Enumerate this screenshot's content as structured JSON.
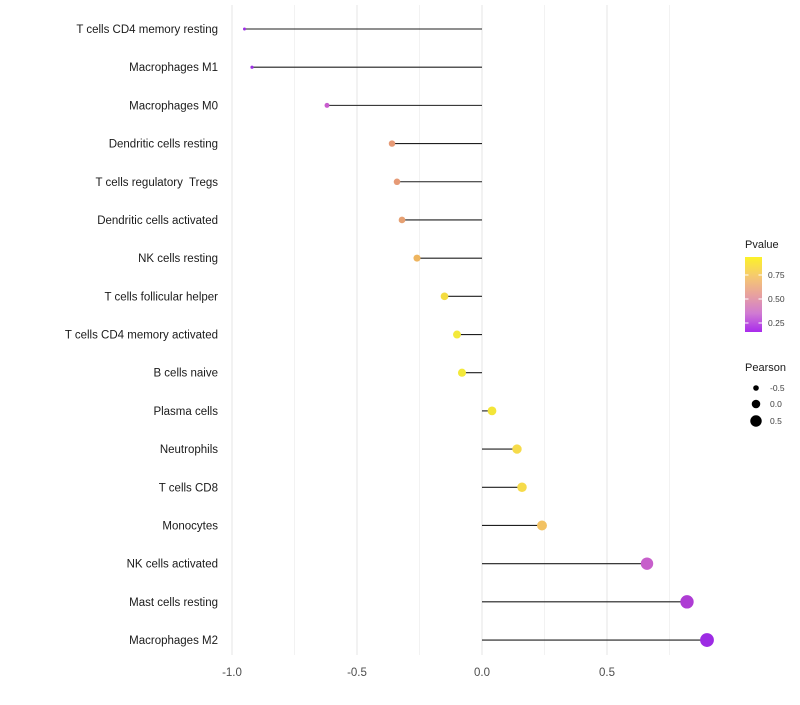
{
  "chart_data": {
    "type": "lollipop",
    "orientation": "horizontal",
    "title": "",
    "xlabel": "",
    "ylabel": "",
    "x_major_ticks": [
      {
        "label": "-1.0",
        "value": -1.0
      },
      {
        "label": "-0.5",
        "value": -0.5
      },
      {
        "label": "0.0",
        "value": 0.0
      },
      {
        "label": "0.5",
        "value": 0.5
      }
    ],
    "x_minor_ticks": [
      -0.75,
      -0.25,
      0.25,
      0.75
    ],
    "xlim": [
      -1.04,
      0.99
    ],
    "grid": "on",
    "points": [
      {
        "cell": "T cells CD4 memory resting",
        "pearson": -0.95,
        "dot_color": "#9C2FE3"
      },
      {
        "cell": "Macrophages M1",
        "pearson": -0.92,
        "dot_color": "#9C2FE3"
      },
      {
        "cell": "Macrophages M0",
        "pearson": -0.62,
        "dot_color": "#C85CCE"
      },
      {
        "cell": "Dendritic cells resting",
        "pearson": -0.36,
        "dot_color": "#E69A76"
      },
      {
        "cell": "T cells regulatory  Tregs",
        "pearson": -0.34,
        "dot_color": "#E69A76"
      },
      {
        "cell": "Dendritic cells activated",
        "pearson": -0.32,
        "dot_color": "#E6A072"
      },
      {
        "cell": "NK cells resting",
        "pearson": -0.26,
        "dot_color": "#EEB55F"
      },
      {
        "cell": "T cells follicular helper",
        "pearson": -0.15,
        "dot_color": "#F4DC40"
      },
      {
        "cell": "T cells CD4 memory activated",
        "pearson": -0.1,
        "dot_color": "#F3E93A"
      },
      {
        "cell": "B cells naive",
        "pearson": -0.08,
        "dot_color": "#F3E93A"
      },
      {
        "cell": "Plasma cells",
        "pearson": 0.04,
        "dot_color": "#F3E538"
      },
      {
        "cell": "Neutrophils",
        "pearson": 0.14,
        "dot_color": "#F6DB4A"
      },
      {
        "cell": "T cells CD8",
        "pearson": 0.16,
        "dot_color": "#F6DB4A"
      },
      {
        "cell": "Monocytes",
        "pearson": 0.24,
        "dot_color": "#F2C263"
      },
      {
        "cell": "NK cells activated",
        "pearson": 0.66,
        "dot_color": "#C75FCB"
      },
      {
        "cell": "Mast cells resting",
        "pearson": 0.82,
        "dot_color": "#AE3CD4"
      },
      {
        "cell": "Macrophages M2",
        "pearson": 0.9,
        "dot_color": "#9D2BE4"
      }
    ],
    "legend_pvalue": {
      "title": "Pvalue",
      "position": "right",
      "gradient_top_to_bottom": [
        "#FCF228",
        "#F6CA6E",
        "#E8A29E",
        "#D07BD2",
        "#A92BEC"
      ],
      "tick_labels": [
        "0.75",
        "0.50",
        "0.25"
      ]
    },
    "legend_pearson": {
      "title": "Pearson",
      "position": "right",
      "items": [
        {
          "label": "-0.5",
          "value": -0.5
        },
        {
          "label": "0.0",
          "value": 0.0
        },
        {
          "label": "0.5",
          "value": 0.5
        }
      ]
    },
    "colors": {
      "stem": "#1F1F1F",
      "grid_major": "#E5E5E5",
      "grid_minor": "#F2F2F2",
      "axis_text": "#4D4D4D",
      "category_text": "#1A1A1A",
      "legend_text": "#3D3D3D",
      "background": "#FFFFFF"
    }
  }
}
